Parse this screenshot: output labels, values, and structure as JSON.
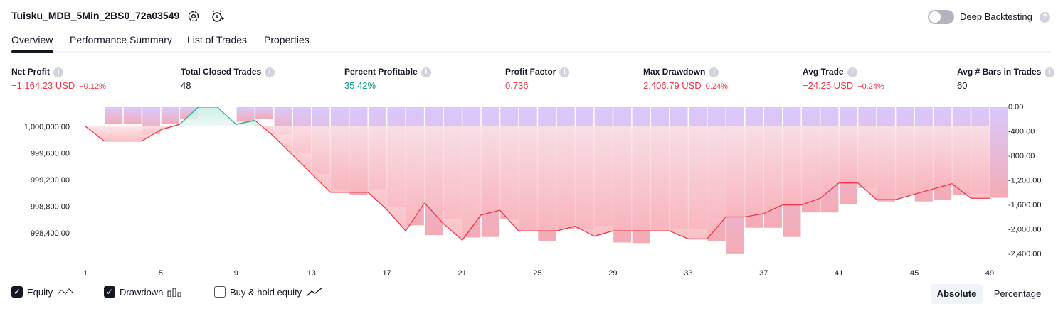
{
  "header": {
    "strategy_name": "Tuisku_MDB_5Min_2BS0_72a03549",
    "settings_icon": "gear-icon",
    "alert_icon": "alarm-add-icon",
    "deep_backtesting_label": "Deep Backtesting",
    "deep_backtesting_enabled": false
  },
  "tabs": [
    {
      "label": "Overview",
      "active": true
    },
    {
      "label": "Performance Summary",
      "active": false
    },
    {
      "label": "List of Trades",
      "active": false
    },
    {
      "label": "Properties",
      "active": false
    }
  ],
  "metrics": [
    {
      "label": "Net Profit",
      "value": "−1,164.23 USD",
      "pct": "−0.12%",
      "color": "#f23645"
    },
    {
      "label": "Total Closed Trades",
      "value": "48",
      "pct": "",
      "color": "#131722"
    },
    {
      "label": "Percent Profitable",
      "value": "35.42%",
      "pct": "",
      "color": "#089981"
    },
    {
      "label": "Profit Factor",
      "value": "0.736",
      "pct": "",
      "color": "#f23645"
    },
    {
      "label": "Max Drawdown",
      "value": "2,406.79 USD",
      "pct": "0.24%",
      "color": "#f23645"
    },
    {
      "label": "Avg Trade",
      "value": "−24.25 USD",
      "pct": "−0.24%",
      "color": "#f23645"
    },
    {
      "label": "Avg # Bars in Trades",
      "value": "60",
      "pct": "",
      "color": "#131722"
    }
  ],
  "chart_data": {
    "type": "line",
    "x_tick_labels": [
      "1",
      "5",
      "9",
      "13",
      "17",
      "21",
      "25",
      "29",
      "33",
      "37",
      "41",
      "45",
      "49"
    ],
    "left_axis_ticks": [
      "1,000,000.00",
      "999,600.00",
      "999,200.00",
      "998,800.00",
      "998,400.00"
    ],
    "left_axis_values": [
      1000000,
      999600,
      999200,
      998800,
      998400
    ],
    "right_axis_ticks": [
      "0.00",
      "-400.00",
      "-800.00",
      "-1,200.00",
      "-1,600.00",
      "-2,000.00",
      "-2,400.00"
    ],
    "right_axis_values": [
      0,
      -400,
      -800,
      -1200,
      -1600,
      -2000,
      -2400
    ],
    "series": [
      {
        "name": "Equity",
        "x": [
          1,
          2,
          3,
          4,
          5,
          6,
          7,
          8,
          9,
          10,
          11,
          12,
          13,
          14,
          15,
          16,
          17,
          18,
          19,
          20,
          21,
          22,
          23,
          24,
          25,
          26,
          27,
          28,
          29,
          30,
          31,
          32,
          33,
          34,
          35,
          36,
          37,
          38,
          39,
          40,
          41,
          42,
          43,
          44,
          45,
          46,
          47,
          48,
          49
        ],
        "values": [
          1000000,
          999780,
          999780,
          999780,
          999950,
          1000030,
          1000290,
          1000290,
          1000030,
          1000090,
          999850,
          999570,
          999290,
          999010,
          999010,
          999010,
          998750,
          998430,
          998850,
          998540,
          998290,
          998670,
          998740,
          998430,
          998430,
          998430,
          998500,
          998350,
          998430,
          998430,
          998430,
          998430,
          998310,
          998310,
          998640,
          998640,
          998690,
          998820,
          998820,
          998920,
          999150,
          999150,
          998900,
          998900,
          998980,
          999060,
          999140,
          998920,
          998920
        ]
      },
      {
        "name": "Drawdown",
        "values": [
          0,
          -290,
          -290,
          -450,
          -290,
          -200,
          0,
          0,
          -250,
          -200,
          -460,
          -750,
          -1100,
          -1350,
          -1450,
          -1350,
          -1640,
          -1940,
          -2100,
          -1840,
          -2140,
          -2130,
          -1840,
          -2000,
          -2200,
          -2000,
          -2000,
          -1950,
          -2220,
          -2230,
          -2000,
          -2000,
          -2000,
          -2200,
          -2410,
          -1980,
          -1980,
          -2130,
          -1730,
          -1730,
          -1600,
          -1330,
          -1550,
          -1440,
          -1550,
          -1520,
          -1450,
          -1420,
          -1490
        ],
        "colors": [
          "#d6c6ff",
          "#f4a6b0"
        ]
      }
    ]
  },
  "legend": [
    {
      "label": "Equity",
      "checked": true,
      "icon": "equity-line-icon"
    },
    {
      "label": "Drawdown",
      "checked": true,
      "icon": "bar-chart-icon"
    },
    {
      "label": "Buy & hold equity",
      "checked": false,
      "icon": "trend-line-icon"
    }
  ],
  "view_mode": {
    "absolute_label": "Absolute",
    "percentage_label": "Percentage",
    "selected": "Absolute"
  }
}
